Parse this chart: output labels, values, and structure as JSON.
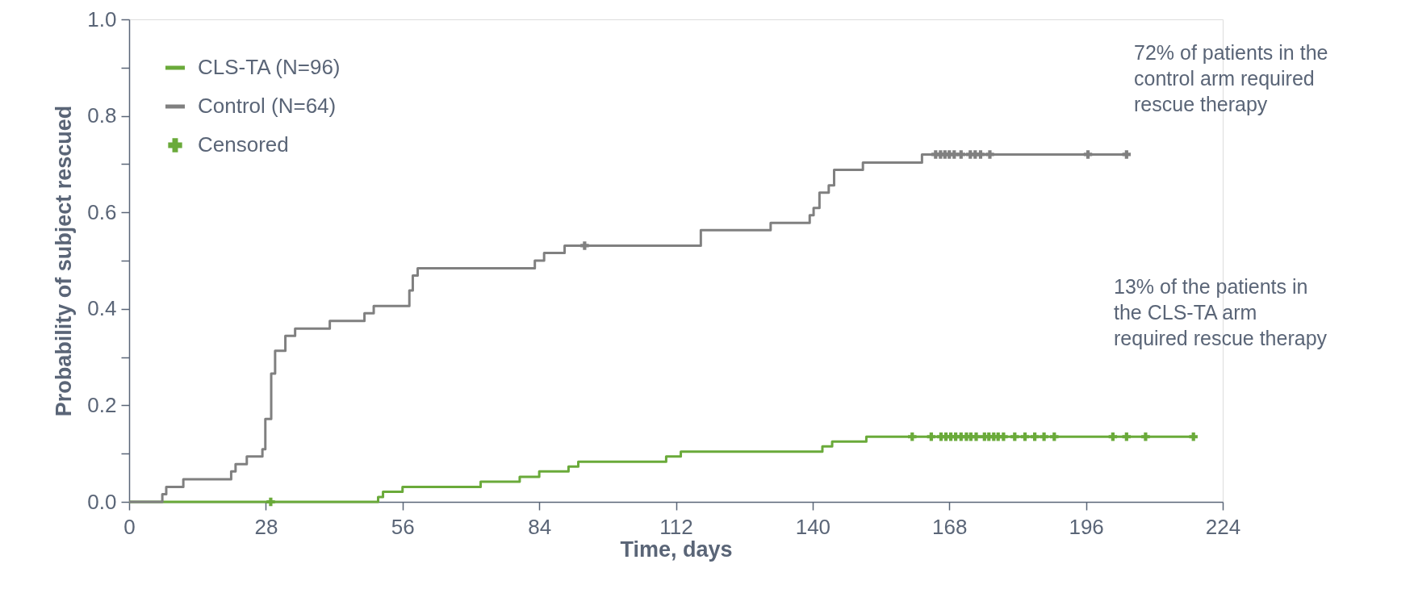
{
  "chart_data": {
    "type": "step",
    "xlabel": "Time, days",
    "ylabel": "Probability of subject rescued",
    "xlim": [
      0,
      224
    ],
    "xticks": [
      0,
      28,
      56,
      84,
      112,
      140,
      168,
      196,
      224
    ],
    "ylim": [
      0,
      1
    ],
    "yticks": [
      {
        "value": 0,
        "label": "0.0"
      },
      {
        "value": 0.1,
        "label": null
      },
      {
        "value": 0.2,
        "label": "0.2"
      },
      {
        "value": 0.3,
        "label": null
      },
      {
        "value": 0.4,
        "label": "0.4"
      },
      {
        "value": 0.5,
        "label": null
      },
      {
        "value": 0.6,
        "label": "0.6"
      },
      {
        "value": 0.7,
        "label": null
      },
      {
        "value": 0.8,
        "label": "0.8"
      },
      {
        "value": 0.9,
        "label": null
      },
      {
        "value": 1,
        "label": "1.0"
      }
    ],
    "grid": false,
    "legend": "top left",
    "line_style": "solid",
    "series": [
      {
        "name": "CLS-TA (N=96)",
        "color": "#6aaa3a",
        "x": [
          0,
          51,
          52,
          56,
          72,
          80,
          84,
          90,
          92,
          110,
          113,
          142,
          144,
          151,
          218
        ],
        "values": [
          0,
          0.01,
          0.021,
          0.031,
          0.042,
          0.052,
          0.063,
          0.073,
          0.083,
          0.094,
          0.104,
          0.115,
          0.125,
          0.135,
          0.135
        ]
      },
      {
        "name": "Control (N=64)",
        "color": "#808080",
        "x": [
          0,
          6.8,
          7.6,
          11.1,
          20.9,
          21.8,
          24.1,
          27.3,
          27.9,
          29.1,
          29.9,
          32,
          34,
          41.1,
          48.2,
          50.1,
          57.4,
          58.1,
          59.1,
          83.1,
          85,
          89.2,
          117.1,
          131.4,
          139.4,
          140.2,
          141.4,
          143.3,
          144.4,
          150.3,
          162.4,
          204
        ],
        "values": [
          0,
          0.016,
          0.031,
          0.047,
          0.063,
          0.078,
          0.094,
          0.109,
          0.172,
          0.266,
          0.313,
          0.344,
          0.359,
          0.375,
          0.391,
          0.406,
          0.438,
          0.469,
          0.484,
          0.5,
          0.516,
          0.531,
          0.563,
          0.578,
          0.594,
          0.609,
          0.641,
          0.656,
          0.688,
          0.703,
          0.72,
          0.72
        ]
      },
      {
        "name": "Censored",
        "type": "scatter",
        "marker": "cross",
        "color": "#6aaa3a",
        "x": [
          29,
          160.4,
          164.3,
          166.3,
          167.3,
          168.3,
          169.3,
          170.4,
          171.5,
          172.4,
          173.5,
          175.2,
          176.1,
          177.1,
          178,
          179.1,
          181.4,
          183.5,
          185.5,
          187.4,
          189.5,
          201.5,
          204.3,
          208.2,
          218
        ],
        "values": [
          0,
          0.135,
          0.135,
          0.135,
          0.135,
          0.135,
          0.135,
          0.135,
          0.135,
          0.135,
          0.135,
          0.135,
          0.135,
          0.135,
          0.135,
          0.135,
          0.135,
          0.135,
          0.135,
          0.135,
          0.135,
          0.135,
          0.135,
          0.135,
          0.135
        ]
      },
      {
        "type": "scatter",
        "marker": "cross",
        "color": "#808080",
        "x": [
          93.3,
          165.2,
          166.2,
          167.1,
          168,
          169,
          170.4,
          172.3,
          173.3,
          174.4,
          176.3,
          196.4,
          204.3
        ],
        "values": [
          0.531,
          0.72,
          0.72,
          0.72,
          0.72,
          0.72,
          0.72,
          0.72,
          0.72,
          0.72,
          0.72,
          0.72,
          0.72
        ]
      }
    ],
    "annotations": [
      "72% of patients in the\ncontrol arm required\nrescue therapy",
      "13% of the patients in\nthe CLS-TA arm\nrequired rescue therapy"
    ]
  }
}
